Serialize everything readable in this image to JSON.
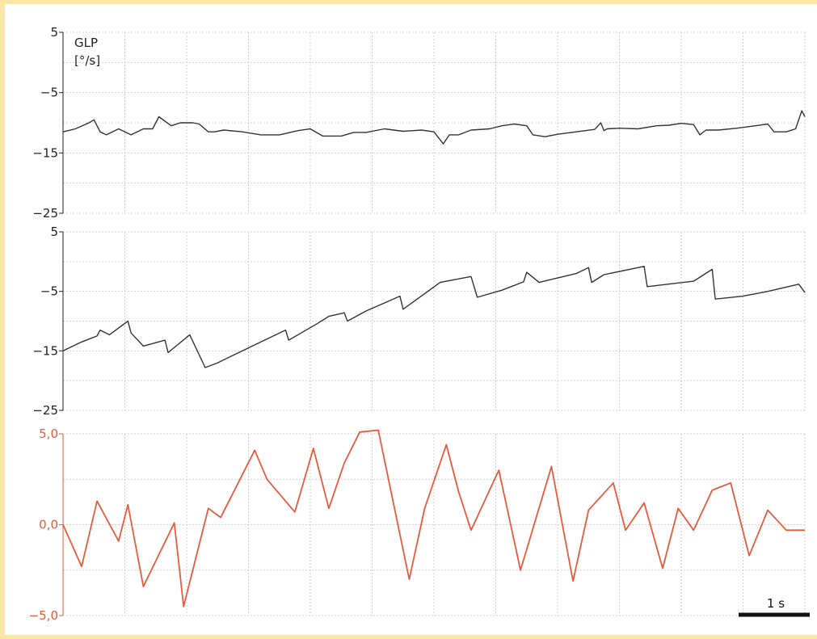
{
  "colors": {
    "frame": "#fbe6a6",
    "grid": "#d0d0d0",
    "trace_dark": "#333333",
    "trace_red": "#e65a3c",
    "tick_dark": "#222222",
    "tick_red": "#e65a3c",
    "scalebar": "#111111"
  },
  "scalebar": {
    "label": "1 s",
    "duration_s": 1
  },
  "chart_data": [
    {
      "type": "line",
      "ylabel": [
        "GLP",
        "[°/s]"
      ],
      "ylim": [
        -25,
        5
      ],
      "yticks": [
        5,
        -5,
        -15,
        -25
      ],
      "ytick_labels": [
        "5",
        "−5",
        "−15",
        "−25"
      ],
      "xlim": [
        0,
        12
      ],
      "grid": true,
      "series": [
        {
          "x": [
            0,
            0.2,
            0.42,
            0.5,
            0.6,
            0.7,
            0.9,
            1.1,
            1.3,
            1.45,
            1.55,
            1.75,
            1.9,
            2.1,
            2.2,
            2.35,
            2.45,
            2.6,
            2.9,
            3.2,
            3.5,
            3.8,
            4.0,
            4.2,
            4.5,
            4.7,
            4.9,
            5.2,
            5.5,
            5.8,
            6.0,
            6.15,
            6.25,
            6.4,
            6.6,
            6.9,
            7.1,
            7.3,
            7.5,
            7.6,
            7.8,
            8.0,
            8.3,
            8.6,
            8.7,
            8.75,
            8.8,
            9.0,
            9.3,
            9.6,
            9.8,
            10.0,
            10.2,
            10.3,
            10.4,
            10.6,
            10.9,
            11.2,
            11.4,
            11.5,
            11.7,
            11.85,
            11.95,
            12.0
          ],
          "y": [
            -11.5,
            -11,
            -10,
            -9.5,
            -11.5,
            -12,
            -11,
            -12,
            -11,
            -11,
            -9,
            -10.5,
            -10,
            -10,
            -10.2,
            -11.5,
            -11.5,
            -11.2,
            -11.5,
            -12,
            -12,
            -11.3,
            -11,
            -12.2,
            -12.2,
            -11.6,
            -11.6,
            -11,
            -11.4,
            -11.2,
            -11.5,
            -13.5,
            -12,
            -12,
            -11.2,
            -11,
            -10.5,
            -10.2,
            -10.5,
            -12,
            -12.3,
            -11.9,
            -11.5,
            -11.1,
            -10,
            -11.3,
            -11,
            -10.9,
            -11,
            -10.5,
            -10.4,
            -10.1,
            -10.3,
            -12,
            -11.2,
            -11.2,
            -10.9,
            -10.5,
            -10.2,
            -11.5,
            -11.5,
            -11,
            -8,
            -9
          ]
        }
      ]
    },
    {
      "type": "line",
      "ylim": [
        -25,
        5
      ],
      "yticks": [
        5,
        -5,
        -15,
        -25
      ],
      "ytick_labels": [
        "5",
        "−5",
        "−15",
        "−25"
      ],
      "xlim": [
        0,
        12
      ],
      "grid": true,
      "series": [
        {
          "x": [
            0,
            0.3,
            0.55,
            0.6,
            0.75,
            1.05,
            1.1,
            1.3,
            1.65,
            1.7,
            2.05,
            2.3,
            2.5,
            2.8,
            3.2,
            3.6,
            3.65,
            4.1,
            4.3,
            4.55,
            4.6,
            4.9,
            5.45,
            5.5,
            5.9,
            6.1,
            6.6,
            6.7,
            7.1,
            7.45,
            7.5,
            7.7,
            8.3,
            8.5,
            8.55,
            8.75,
            9.4,
            9.45,
            10.2,
            10.5,
            10.55,
            11,
            11.4,
            11.9,
            12.0
          ],
          "y": [
            -15,
            -13.5,
            -12.5,
            -11.5,
            -12.3,
            -10,
            -12,
            -14.2,
            -13.2,
            -15.3,
            -12.3,
            -17.8,
            -17,
            -15.5,
            -13.5,
            -11.5,
            -13.2,
            -10.5,
            -9.2,
            -8.6,
            -10,
            -8.3,
            -5.8,
            -8,
            -5,
            -3.5,
            -2.5,
            -6,
            -4.8,
            -3.4,
            -1.8,
            -3.5,
            -2,
            -1,
            -3.5,
            -2.2,
            -0.8,
            -4.2,
            -3.3,
            -1.3,
            -6.3,
            -5.8,
            -5,
            -3.8,
            -5.2
          ]
        }
      ]
    },
    {
      "type": "line",
      "ylim": [
        -5,
        5
      ],
      "yticks": [
        5,
        0,
        -5
      ],
      "ytick_labels": [
        "5,0",
        "0,0",
        "−5,0"
      ],
      "xlim": [
        0,
        12
      ],
      "grid": true,
      "series": [
        {
          "x": [
            0,
            0.3,
            0.55,
            0.9,
            1.05,
            1.3,
            1.8,
            1.95,
            2.35,
            2.55,
            3.1,
            3.3,
            3.75,
            4.05,
            4.3,
            4.55,
            4.8,
            5.1,
            5.6,
            5.85,
            6.2,
            6.4,
            6.6,
            7.05,
            7.4,
            7.9,
            8.25,
            8.5,
            8.9,
            9.1,
            9.4,
            9.7,
            9.95,
            10.2,
            10.5,
            10.8,
            11.1,
            11.4,
            11.7,
            12.0
          ],
          "y": [
            0,
            -2.3,
            1.3,
            -0.9,
            1.1,
            -3.4,
            0.1,
            -4.5,
            0.9,
            0.4,
            4.1,
            2.5,
            0.7,
            4.2,
            0.9,
            3.4,
            5.1,
            5.2,
            -3,
            0.9,
            4.4,
            1.8,
            -0.3,
            3,
            -2.5,
            3.2,
            -3.1,
            0.8,
            2.3,
            -0.3,
            1.2,
            -2.4,
            0.9,
            -0.3,
            1.9,
            2.3,
            -1.7,
            0.8,
            -0.3,
            -0.3
          ]
        }
      ]
    }
  ]
}
